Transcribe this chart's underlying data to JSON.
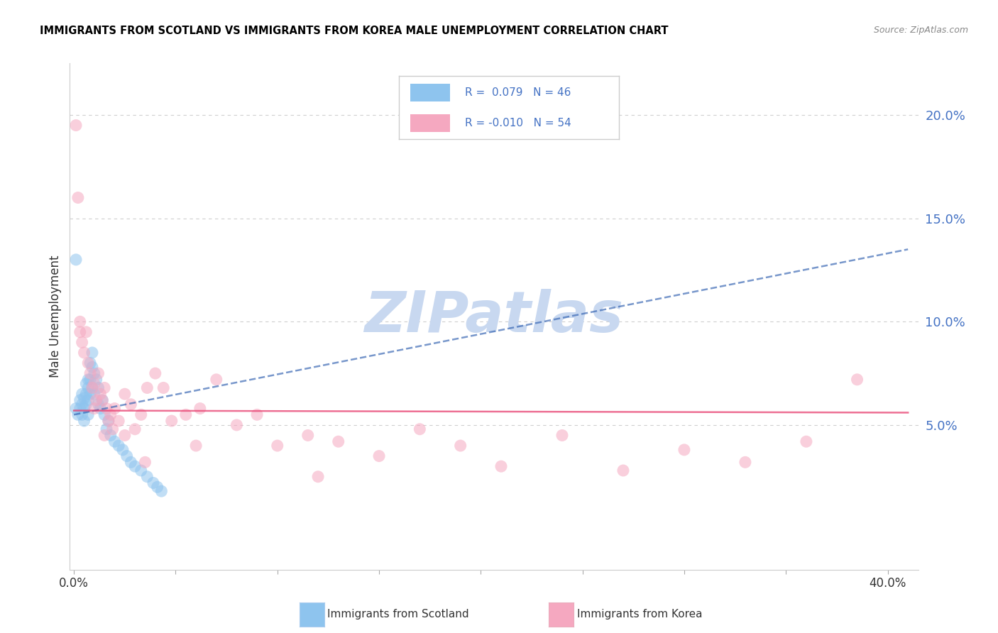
{
  "title": "IMMIGRANTS FROM SCOTLAND VS IMMIGRANTS FROM KOREA MALE UNEMPLOYMENT CORRELATION CHART",
  "source": "Source: ZipAtlas.com",
  "ylabel": "Male Unemployment",
  "y_ticks_right": [
    0.05,
    0.1,
    0.15,
    0.2
  ],
  "y_tick_labels_right": [
    "5.0%",
    "10.0%",
    "15.0%",
    "20.0%"
  ],
  "ylim": [
    -0.02,
    0.225
  ],
  "xlim": [
    -0.002,
    0.415
  ],
  "scotland_R": 0.079,
  "scotland_N": 46,
  "korea_R": -0.01,
  "korea_N": 54,
  "scotland_color": "#8EC4EE",
  "korea_color": "#F5A8C0",
  "scotland_line_color": "#3060B0",
  "korea_line_color": "#E84070",
  "watermark": "ZIPatlas",
  "watermark_color": "#C8D8F0",
  "scotland_x": [
    0.001,
    0.002,
    0.003,
    0.003,
    0.004,
    0.004,
    0.004,
    0.005,
    0.005,
    0.005,
    0.006,
    0.006,
    0.006,
    0.007,
    0.007,
    0.007,
    0.007,
    0.008,
    0.008,
    0.008,
    0.009,
    0.009,
    0.009,
    0.01,
    0.01,
    0.011,
    0.012,
    0.012,
    0.013,
    0.014,
    0.015,
    0.016,
    0.017,
    0.018,
    0.02,
    0.022,
    0.024,
    0.026,
    0.028,
    0.03,
    0.033,
    0.036,
    0.039,
    0.041,
    0.043,
    0.001
  ],
  "scotland_y": [
    0.058,
    0.055,
    0.062,
    0.058,
    0.065,
    0.06,
    0.055,
    0.063,
    0.058,
    0.052,
    0.07,
    0.065,
    0.06,
    0.072,
    0.068,
    0.062,
    0.055,
    0.08,
    0.072,
    0.065,
    0.085,
    0.078,
    0.068,
    0.075,
    0.065,
    0.072,
    0.068,
    0.06,
    0.058,
    0.062,
    0.055,
    0.048,
    0.052,
    0.045,
    0.042,
    0.04,
    0.038,
    0.035,
    0.032,
    0.03,
    0.028,
    0.025,
    0.022,
    0.02,
    0.018,
    0.13
  ],
  "korea_x": [
    0.001,
    0.002,
    0.003,
    0.003,
    0.004,
    0.005,
    0.006,
    0.007,
    0.008,
    0.009,
    0.01,
    0.011,
    0.012,
    0.013,
    0.014,
    0.015,
    0.016,
    0.017,
    0.018,
    0.019,
    0.02,
    0.022,
    0.025,
    0.028,
    0.03,
    0.033,
    0.036,
    0.04,
    0.044,
    0.048,
    0.055,
    0.062,
    0.07,
    0.08,
    0.09,
    0.1,
    0.115,
    0.13,
    0.15,
    0.17,
    0.19,
    0.21,
    0.24,
    0.27,
    0.3,
    0.33,
    0.36,
    0.385,
    0.01,
    0.015,
    0.025,
    0.035,
    0.06,
    0.12
  ],
  "korea_y": [
    0.195,
    0.16,
    0.1,
    0.095,
    0.09,
    0.085,
    0.095,
    0.08,
    0.075,
    0.068,
    0.07,
    0.062,
    0.075,
    0.065,
    0.062,
    0.068,
    0.058,
    0.052,
    0.055,
    0.048,
    0.058,
    0.052,
    0.065,
    0.06,
    0.048,
    0.055,
    0.068,
    0.075,
    0.068,
    0.052,
    0.055,
    0.058,
    0.072,
    0.05,
    0.055,
    0.04,
    0.045,
    0.042,
    0.035,
    0.048,
    0.04,
    0.03,
    0.045,
    0.028,
    0.038,
    0.032,
    0.042,
    0.072,
    0.058,
    0.045,
    0.045,
    0.032,
    0.04,
    0.025
  ],
  "scotland_trend_x0": 0.0,
  "scotland_trend_y0": 0.055,
  "scotland_trend_x1": 0.41,
  "scotland_trend_y1": 0.135,
  "korea_trend_x0": 0.0,
  "korea_trend_y0": 0.057,
  "korea_trend_x1": 0.41,
  "korea_trend_y1": 0.056
}
